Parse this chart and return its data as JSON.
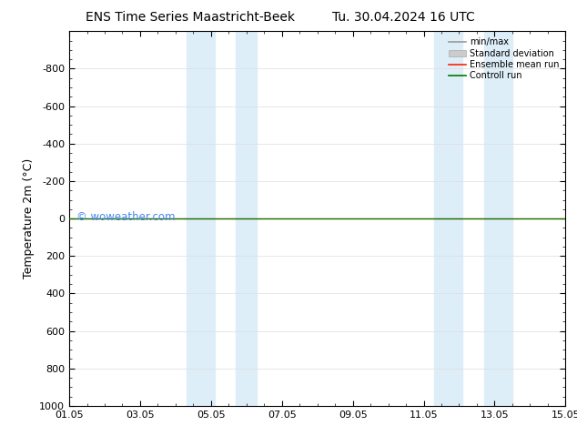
{
  "title": "ENS Time Series Maastricht-Beek",
  "title2": "Tu. 30.04.2024 16 UTC",
  "ylabel": "Temperature 2m (°C)",
  "ylim_top": -1000,
  "ylim_bottom": 1000,
  "yticks": [
    -800,
    -600,
    -400,
    -200,
    0,
    200,
    400,
    600,
    800,
    1000
  ],
  "ytick_labels": [
    "-800",
    "-600",
    "-400",
    "-200",
    "0",
    "200",
    "400",
    "600",
    "800",
    "1000"
  ],
  "xlim_start": 0,
  "xlim_end": 14,
  "xtick_labels": [
    "01.05",
    "03.05",
    "05.05",
    "07.05",
    "09.05",
    "11.05",
    "13.05",
    "15.05"
  ],
  "xtick_positions": [
    0,
    2,
    4,
    6,
    8,
    10,
    12,
    14
  ],
  "shaded_bands": [
    {
      "x_start": 3.3,
      "x_end": 4.1
    },
    {
      "x_start": 4.7,
      "x_end": 5.3
    },
    {
      "x_start": 10.3,
      "x_end": 11.1
    },
    {
      "x_start": 11.7,
      "x_end": 12.5
    }
  ],
  "band_color": "#ddeef8",
  "control_run_color": "#007700",
  "ensemble_mean_color": "#ff2200",
  "minmax_color": "#999999",
  "stddev_color": "#cccccc",
  "watermark": "© woweather.com",
  "watermark_color": "#4488ee",
  "background_color": "#ffffff",
  "legend_items": [
    "min/max",
    "Standard deviation",
    "Ensemble mean run",
    "Controll run"
  ],
  "legend_colors": [
    "#999999",
    "#cccccc",
    "#ff2200",
    "#007700"
  ]
}
